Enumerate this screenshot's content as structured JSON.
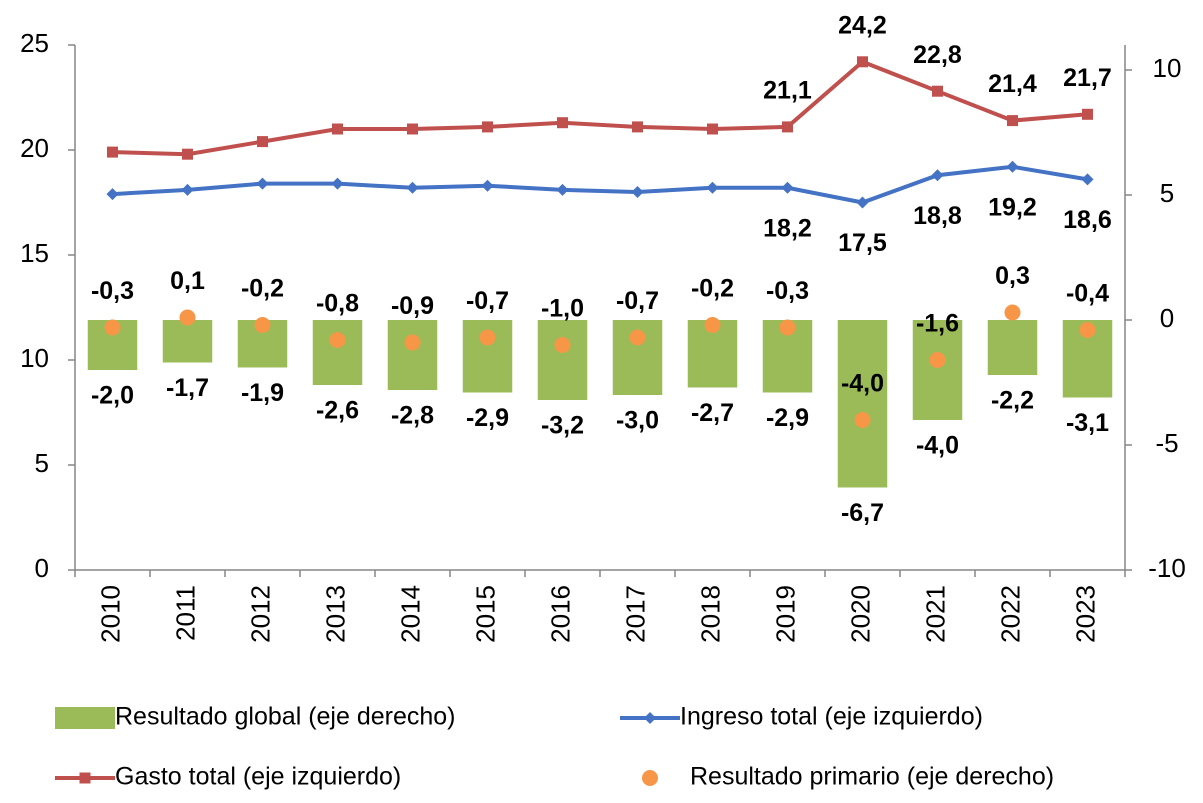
{
  "chart_data": {
    "type": "combo",
    "categories": [
      "2010",
      "2011",
      "2012",
      "2013",
      "2014",
      "2015",
      "2016",
      "2017",
      "2018",
      "2019",
      "2020",
      "2021",
      "2022",
      "2023"
    ],
    "ylim": [
      0,
      25
    ],
    "yticks": [
      0,
      5,
      10,
      15,
      20,
      25
    ],
    "y2lim": [
      -10,
      11
    ],
    "y2ticks": [
      -10,
      -5,
      0,
      5,
      10
    ],
    "series": [
      {
        "name": "Resultado global (eje derecho)",
        "type": "bar",
        "axis": "y2",
        "color": "#9bbb59",
        "values": [
          -2.0,
          -1.7,
          -1.9,
          -2.6,
          -2.8,
          -2.9,
          -3.2,
          -3.0,
          -2.7,
          -2.9,
          -6.7,
          -4.0,
          -2.2,
          -3.1
        ],
        "value_labels": [
          "-2,0",
          "-1,7",
          "-1,9",
          "-2,6",
          "-2,8",
          "-2,9",
          "-3,2",
          "-3,0",
          "-2,7",
          "-2,9",
          "-6,7",
          "-4,0",
          "-2,2",
          "-3,1"
        ]
      },
      {
        "name": "Ingreso total (eje izquierdo)",
        "type": "line",
        "marker": "diamond",
        "color": "#4472c4",
        "values": [
          17.9,
          18.1,
          18.4,
          18.4,
          18.2,
          18.3,
          18.1,
          18.0,
          18.2,
          18.2,
          17.5,
          18.8,
          19.2,
          18.6
        ],
        "value_labels": [
          null,
          null,
          null,
          null,
          null,
          null,
          null,
          null,
          null,
          "18,2",
          "17,5",
          "18,8",
          "19,2",
          "18,6"
        ]
      },
      {
        "name": "Gasto total (eje izquierdo)",
        "type": "line",
        "marker": "square",
        "color": "#c0504d",
        "values": [
          19.9,
          19.8,
          20.4,
          21.0,
          21.0,
          21.1,
          21.3,
          21.1,
          21.0,
          21.1,
          24.2,
          22.8,
          21.4,
          21.7
        ],
        "value_labels": [
          null,
          null,
          null,
          null,
          null,
          null,
          null,
          null,
          null,
          "21,1",
          "24,2",
          "22,8",
          "21,4",
          "21,7"
        ]
      },
      {
        "name": "Resultado primario (eje derecho)",
        "type": "scatter",
        "axis": "y2",
        "color": "#f79646",
        "values": [
          -0.3,
          0.1,
          -0.2,
          -0.8,
          -0.9,
          -0.7,
          -1.0,
          -0.7,
          -0.2,
          -0.3,
          -4.0,
          -1.6,
          0.3,
          -0.4
        ],
        "value_labels": [
          "-0,3",
          "0,1",
          "-0,2",
          "-0,8",
          "-0,9",
          "-0,7",
          "-1,0",
          "-0,7",
          "-0,2",
          "-0,3",
          "-4,0",
          "-1,6",
          "0,3",
          "-0,4"
        ]
      }
    ]
  }
}
